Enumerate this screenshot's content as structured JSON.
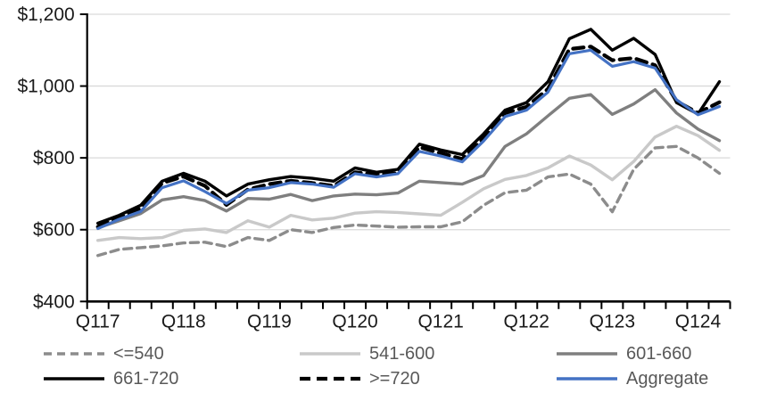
{
  "chart_data": {
    "type": "line",
    "title": "",
    "xlabel": "",
    "ylabel": "",
    "ylim": [
      400,
      1200
    ],
    "grid": "horizontal",
    "legend_position": "bottom",
    "y_ticks": [
      400,
      600,
      800,
      1000,
      1200
    ],
    "y_axis_tick_labels": [
      "$400",
      "$600",
      "$800",
      "$1,000",
      "$1,200"
    ],
    "x_axis_tick_labels": [
      "Q117",
      "Q118",
      "Q119",
      "Q120",
      "Q121",
      "Q122",
      "Q123",
      "Q124"
    ],
    "x": [
      "Q117",
      "Q217",
      "Q317",
      "Q417",
      "Q118",
      "Q218",
      "Q318",
      "Q418",
      "Q119",
      "Q219",
      "Q319",
      "Q419",
      "Q120",
      "Q220",
      "Q320",
      "Q420",
      "Q121",
      "Q221",
      "Q321",
      "Q421",
      "Q122",
      "Q222",
      "Q322",
      "Q422",
      "Q123",
      "Q223",
      "Q323",
      "Q423",
      "Q124",
      "Q224"
    ],
    "series": [
      {
        "name": "<=540",
        "color": "#8c8c8c",
        "dash": "9 6",
        "width": 3.4,
        "values": [
          528,
          545,
          550,
          555,
          563,
          565,
          553,
          578,
          570,
          600,
          592,
          606,
          613,
          610,
          607,
          608,
          608,
          622,
          668,
          703,
          710,
          747,
          755,
          727,
          650,
          768,
          828,
          832,
          800,
          757
        ]
      },
      {
        "name": "541-600",
        "color": "#c9c9c9",
        "dash": null,
        "width": 3.4,
        "values": [
          570,
          578,
          575,
          578,
          598,
          602,
          592,
          625,
          607,
          640,
          627,
          632,
          646,
          650,
          648,
          644,
          640,
          676,
          714,
          740,
          751,
          772,
          805,
          780,
          739,
          790,
          858,
          888,
          862,
          821
        ]
      },
      {
        "name": "601-660",
        "color": "#7f7f7f",
        "dash": null,
        "width": 3.4,
        "values": [
          605,
          625,
          645,
          683,
          692,
          681,
          652,
          687,
          685,
          698,
          681,
          694,
          699,
          697,
          702,
          735,
          731,
          727,
          751,
          832,
          867,
          917,
          966,
          976,
          921,
          950,
          990,
          925,
          880,
          848
        ]
      },
      {
        "name": "661-720",
        "color": "#000000",
        "dash": null,
        "width": 3.4,
        "values": [
          618,
          640,
          668,
          735,
          757,
          735,
          694,
          727,
          739,
          748,
          743,
          735,
          772,
          760,
          768,
          838,
          822,
          809,
          867,
          933,
          954,
          1012,
          1132,
          1158,
          1100,
          1133,
          1088,
          954,
          922,
          1012
        ]
      },
      {
        "name": ">=720",
        "color": "#000000",
        "dash": "12 7",
        "width": 4.2,
        "values": [
          608,
          634,
          660,
          730,
          748,
          722,
          669,
          712,
          727,
          736,
          730,
          722,
          760,
          754,
          758,
          830,
          813,
          797,
          855,
          925,
          942,
          992,
          1103,
          1110,
          1072,
          1078,
          1058,
          958,
          925,
          955
        ]
      },
      {
        "name": "Aggregate",
        "color": "#4472c4",
        "dash": null,
        "width": 3.2,
        "values": [
          603,
          629,
          651,
          717,
          736,
          706,
          673,
          710,
          717,
          731,
          727,
          718,
          756,
          747,
          756,
          818,
          805,
          789,
          847,
          915,
          933,
          983,
          1090,
          1100,
          1055,
          1068,
          1050,
          962,
          920,
          943
        ]
      }
    ]
  },
  "style": {
    "grid_color": "#d9d9d9",
    "axis_color": "#000000",
    "tick_label_color": "#1a1a1a",
    "legend_text_color": "#595959",
    "background": "#ffffff"
  }
}
